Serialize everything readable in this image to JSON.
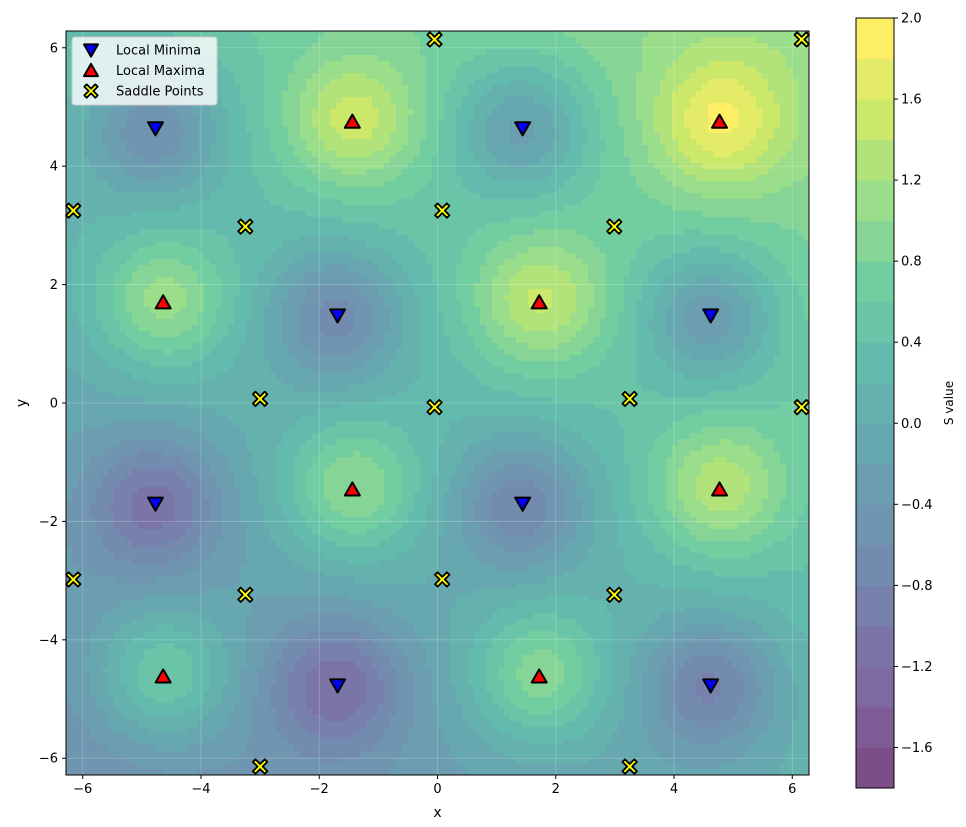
{
  "chart_data": {
    "type": "contour",
    "xlabel": "x",
    "ylabel": "y",
    "xlim": [
      -6.283,
      6.283
    ],
    "ylim": [
      -6.283,
      6.283
    ],
    "xticks": [
      -6,
      -4,
      -2,
      0,
      2,
      4,
      6
    ],
    "yticks": [
      -6,
      -4,
      -2,
      0,
      2,
      4,
      6
    ],
    "xtick_labels": [
      "−6",
      "−4",
      "−2",
      "0",
      "2",
      "4",
      "6"
    ],
    "ytick_labels": [
      "−6",
      "−4",
      "−2",
      "0",
      "2",
      "4",
      "6"
    ],
    "grid": true,
    "colormap": "viridis",
    "colorbar": {
      "label": "S value",
      "vmin": -1.8,
      "vmax": 2.0,
      "ticks": [
        -1.6,
        -1.2,
        -0.8,
        -0.4,
        0.0,
        0.4,
        0.8,
        1.2,
        1.6,
        2.0
      ],
      "tick_labels": [
        "−1.6",
        "−1.2",
        "−0.8",
        "−0.4",
        "0.0",
        "0.4",
        "0.8",
        "1.2",
        "1.6",
        "2.0"
      ]
    },
    "legend": {
      "position": "top-left",
      "entries": [
        "Local Minima",
        "Local Maxima",
        "Saddle Points"
      ]
    },
    "series": [
      {
        "name": "Local Minima",
        "marker": "triangle-down",
        "color": "#0000ff",
        "points": [
          [
            -4.77,
            4.64
          ],
          [
            1.44,
            4.64
          ],
          [
            -1.69,
            1.48
          ],
          [
            4.62,
            1.48
          ],
          [
            -4.77,
            -1.7
          ],
          [
            1.44,
            -1.7
          ],
          [
            -1.69,
            -4.77
          ],
          [
            4.62,
            -4.77
          ]
        ]
      },
      {
        "name": "Local Maxima",
        "marker": "triangle-up",
        "color": "#ff0000",
        "points": [
          [
            -1.44,
            4.75
          ],
          [
            4.77,
            4.75
          ],
          [
            -4.64,
            1.7
          ],
          [
            1.72,
            1.7
          ],
          [
            -1.44,
            -1.46
          ],
          [
            4.77,
            -1.46
          ],
          [
            -4.64,
            -4.62
          ],
          [
            1.72,
            -4.62
          ]
        ]
      },
      {
        "name": "Saddle Points",
        "marker": "x",
        "color": "#ffff00",
        "points": [
          [
            -0.05,
            6.14
          ],
          [
            6.16,
            6.14
          ],
          [
            -6.16,
            3.25
          ],
          [
            -3.25,
            2.98
          ],
          [
            0.08,
            3.25
          ],
          [
            2.99,
            2.98
          ],
          [
            -3.0,
            0.07
          ],
          [
            -0.05,
            -0.07
          ],
          [
            3.25,
            0.07
          ],
          [
            6.16,
            -0.07
          ],
          [
            -6.16,
            -2.98
          ],
          [
            -3.25,
            -3.24
          ],
          [
            0.08,
            -2.98
          ],
          [
            2.99,
            -3.24
          ],
          [
            -3.0,
            -6.14
          ],
          [
            3.25,
            -6.14
          ]
        ]
      }
    ]
  }
}
